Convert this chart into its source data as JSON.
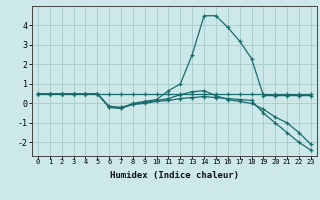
{
  "xlabel": "Humidex (Indice chaleur)",
  "bg_color": "#cce8e8",
  "grid_color": "#aacece",
  "line_color": "#1a6b6b",
  "x_values": [
    0,
    1,
    2,
    3,
    4,
    5,
    6,
    7,
    8,
    9,
    10,
    11,
    12,
    13,
    14,
    15,
    16,
    17,
    18,
    19,
    20,
    21,
    22,
    23
  ],
  "line1": [
    0.5,
    0.5,
    0.5,
    0.5,
    0.5,
    0.5,
    0.5,
    0.5,
    0.5,
    0.5,
    0.5,
    0.5,
    0.5,
    0.5,
    0.5,
    0.5,
    0.5,
    0.5,
    0.5,
    0.5,
    0.5,
    0.5,
    0.5,
    0.5
  ],
  "line2": [
    0.5,
    0.5,
    0.5,
    0.5,
    0.5,
    0.5,
    -0.2,
    -0.25,
    0.0,
    0.1,
    0.2,
    0.65,
    1.0,
    2.5,
    4.5,
    4.5,
    3.9,
    3.2,
    2.3,
    0.4,
    0.4,
    0.4,
    0.4,
    0.4
  ],
  "line3": [
    0.5,
    0.5,
    0.5,
    0.5,
    0.5,
    0.5,
    -0.2,
    -0.25,
    -0.05,
    0.05,
    0.15,
    0.25,
    0.45,
    0.6,
    0.65,
    0.4,
    0.2,
    0.1,
    0.0,
    -0.3,
    -0.7,
    -1.0,
    -1.5,
    -2.1
  ],
  "line4": [
    0.5,
    0.5,
    0.5,
    0.5,
    0.5,
    0.5,
    -0.15,
    -0.2,
    -0.05,
    0.0,
    0.1,
    0.15,
    0.25,
    0.3,
    0.35,
    0.3,
    0.25,
    0.2,
    0.15,
    -0.5,
    -1.0,
    -1.5,
    -2.0,
    -2.4
  ],
  "ylim": [
    -2.7,
    5.0
  ],
  "yticks": [
    -2,
    -1,
    0,
    1,
    2,
    3,
    4
  ]
}
